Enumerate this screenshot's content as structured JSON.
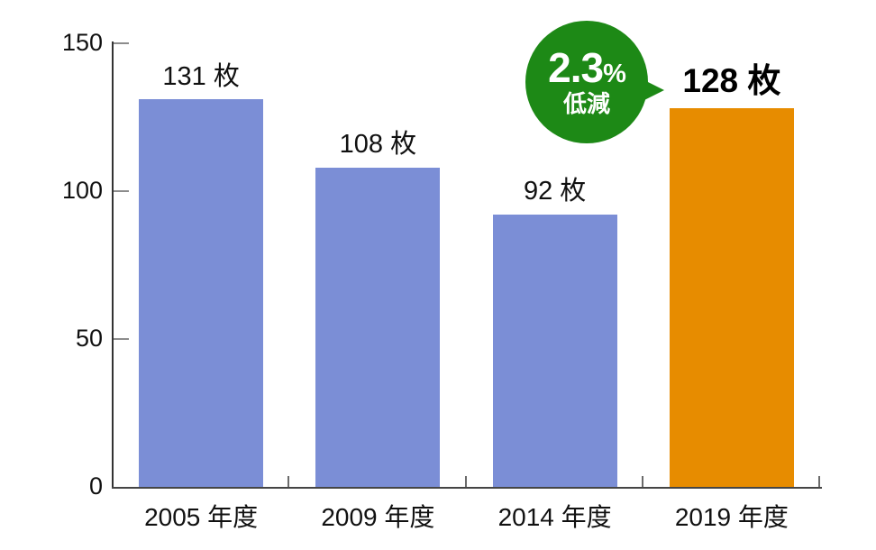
{
  "chart_data": {
    "type": "bar",
    "title": "",
    "xlabel": "",
    "ylabel": "",
    "categories": [
      "2005 年度",
      "2009 年度",
      "2014 年度",
      "2019 年度"
    ],
    "values": [
      131,
      108,
      92,
      128
    ],
    "value_labels": [
      "131 枚",
      "108 枚",
      "92 枚",
      "128 枚"
    ],
    "value_unit": "枚",
    "ylim": [
      0,
      150
    ],
    "yticks": [
      0,
      50,
      100,
      150
    ],
    "grid": false,
    "legend": "none",
    "bar_colors": [
      "#7b8ed6",
      "#7b8ed6",
      "#7b8ed6",
      "#e78c00"
    ],
    "highlight_index": 3,
    "annotation": {
      "value": "2.3",
      "percent_sign": "%",
      "label": "低減",
      "shape": "circle-callout-pointing-right",
      "fill": "#1d8916",
      "text_color": "#ffffff"
    }
  },
  "style": {
    "background": "#ffffff",
    "axis_color": "#333333",
    "x_axis_color": "#454545",
    "y_tick_color": "#8c8c8c",
    "x_tick_color": "#6b6b6b",
    "text_color": "#111111"
  }
}
